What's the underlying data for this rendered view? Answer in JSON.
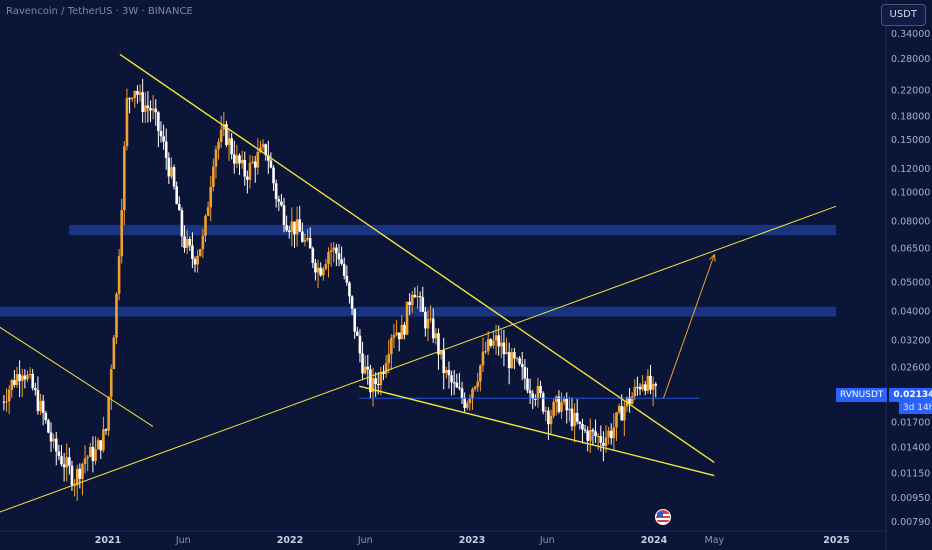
{
  "header": {
    "title": "Ravencoin / TetherUS",
    "interval": "3W",
    "exchange": "BINANCE",
    "sep1": "·",
    "sep2": "·"
  },
  "currency_button": "USDT",
  "price_badge": {
    "symbol": "RVNUSDT",
    "price": "0.02134",
    "countdown": "3d 14h"
  },
  "event_icon": "us-flag-icon",
  "colors": {
    "background": "#0b1538",
    "candle_up": "#f0a030",
    "candle_down": "#ffffff",
    "trendline": "#f2e33a",
    "projection_arrow": "#f0a030",
    "zone": "#1f3f9a",
    "price_line": "#2962ff"
  },
  "chart_data": {
    "type": "candlestick",
    "symbol": "RVNUSDT",
    "y_scale": "log",
    "y_ticks": [
      "0.34000",
      "0.28000",
      "0.22000",
      "0.18000",
      "0.15000",
      "0.12000",
      "0.10000",
      "0.08000",
      "0.06500",
      "0.05000",
      "0.04000",
      "0.03200",
      "0.02600",
      "0.02100",
      "0.01700",
      "0.01400",
      "0.01150",
      "0.00950",
      "0.00790"
    ],
    "x_ticks": [
      "2021",
      "Jun",
      "2022",
      "Jun",
      "2023",
      "Jun",
      "2024",
      "May",
      "2025"
    ],
    "ylim": [
      0.0079,
      0.36
    ],
    "last_price": 0.02134,
    "anchors": [
      [
        "2020-06-01",
        0.02
      ],
      [
        "2020-06-22",
        0.023
      ],
      [
        "2020-07-13",
        0.026
      ],
      [
        "2020-08-03",
        0.022
      ],
      [
        "2020-08-24",
        0.018
      ],
      [
        "2020-09-14",
        0.014
      ],
      [
        "2020-10-05",
        0.0125
      ],
      [
        "2020-10-26",
        0.011
      ],
      [
        "2020-11-16",
        0.013
      ],
      [
        "2020-12-07",
        0.0135
      ],
      [
        "2020-12-28",
        0.016
      ],
      [
        "2021-01-18",
        0.045
      ],
      [
        "2021-02-08",
        0.2
      ],
      [
        "2021-02-22",
        0.23
      ],
      [
        "2021-03-08",
        0.2
      ],
      [
        "2021-03-29",
        0.19
      ],
      [
        "2021-04-19",
        0.15
      ],
      [
        "2021-05-10",
        0.11
      ],
      [
        "2021-05-31",
        0.07
      ],
      [
        "2021-06-21",
        0.06
      ],
      [
        "2021-07-12",
        0.07
      ],
      [
        "2021-08-02",
        0.14
      ],
      [
        "2021-08-23",
        0.16
      ],
      [
        "2021-09-13",
        0.13
      ],
      [
        "2021-10-04",
        0.115
      ],
      [
        "2021-10-25",
        0.13
      ],
      [
        "2021-11-15",
        0.14
      ],
      [
        "2021-12-06",
        0.095
      ],
      [
        "2021-12-27",
        0.08
      ],
      [
        "2022-01-17",
        0.075
      ],
      [
        "2022-02-07",
        0.065
      ],
      [
        "2022-02-28",
        0.055
      ],
      [
        "2022-03-21",
        0.065
      ],
      [
        "2022-04-11",
        0.062
      ],
      [
        "2022-05-02",
        0.042
      ],
      [
        "2022-05-23",
        0.028
      ],
      [
        "2022-06-13",
        0.022
      ],
      [
        "2022-07-04",
        0.025
      ],
      [
        "2022-07-25",
        0.035
      ],
      [
        "2022-08-15",
        0.034
      ],
      [
        "2022-09-05",
        0.05
      ],
      [
        "2022-09-26",
        0.038
      ],
      [
        "2022-10-17",
        0.034
      ],
      [
        "2022-11-07",
        0.025
      ],
      [
        "2022-11-28",
        0.022
      ],
      [
        "2022-12-19",
        0.02
      ],
      [
        "2023-01-09",
        0.024
      ],
      [
        "2023-01-30",
        0.03
      ],
      [
        "2023-02-20",
        0.032
      ],
      [
        "2023-03-13",
        0.028
      ],
      [
        "2023-04-03",
        0.026
      ],
      [
        "2023-04-24",
        0.023
      ],
      [
        "2023-05-15",
        0.021
      ],
      [
        "2023-06-05",
        0.018
      ],
      [
        "2023-06-26",
        0.02
      ],
      [
        "2023-07-17",
        0.018
      ],
      [
        "2023-08-07",
        0.016
      ],
      [
        "2023-08-28",
        0.0155
      ],
      [
        "2023-09-18",
        0.015
      ],
      [
        "2023-10-09",
        0.016
      ],
      [
        "2023-10-30",
        0.019
      ],
      [
        "2023-11-20",
        0.021
      ],
      [
        "2023-12-11",
        0.024
      ],
      [
        "2024-01-01",
        0.021
      ],
      [
        "2024-01-08",
        0.02134
      ]
    ],
    "lines": [
      {
        "name": "descending-resistance",
        "from": [
          "2021-01-25",
          0.29
        ],
        "to": [
          "2024-05-01",
          0.0125
        ]
      },
      {
        "name": "wedge-support",
        "from": [
          "2022-05-20",
          0.0225
        ],
        "to": [
          "2024-05-01",
          0.0113
        ]
      },
      {
        "name": "long-term-support",
        "from": [
          "2020-05-01",
          0.0082
        ],
        "to": [
          "2024-12-31",
          0.09
        ]
      },
      {
        "name": "old-downtrend",
        "from": [
          "2020-05-01",
          0.038
        ],
        "to": [
          "2021-04-01",
          0.0165
        ]
      }
    ],
    "zones": [
      {
        "from_price": 0.072,
        "to_price": 0.078,
        "x_start": "2020-10-15",
        "x_end": "2024-12-31"
      },
      {
        "from_price": 0.0385,
        "to_price": 0.0415,
        "x_start": "2020-05-01",
        "x_end": "2024-12-31"
      }
    ],
    "horizontal": {
      "price": 0.0205,
      "from": "2022-05-20",
      "to": "2024-04-01"
    },
    "projection": {
      "from": [
        "2024-01-20",
        0.0205
      ],
      "to": [
        "2024-05-01",
        0.062
      ]
    }
  }
}
